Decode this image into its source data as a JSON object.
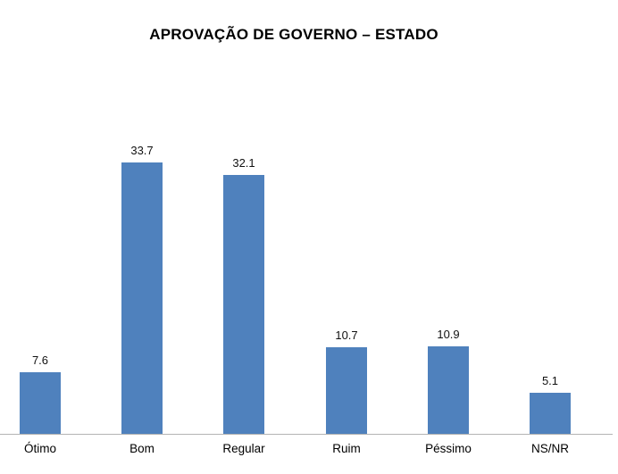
{
  "title": "APROVAÇÃO DE GOVERNO – ESTADO",
  "chart_data": {
    "type": "bar",
    "title": "APROVAÇÃO DE GOVERNO – ESTADO",
    "categories": [
      "Ótimo",
      "Bom",
      "Regular",
      "Ruim",
      "Péssimo",
      "NS/NR"
    ],
    "values": [
      7.6,
      33.7,
      32.1,
      10.7,
      10.9,
      5.1
    ],
    "value_labels": [
      "7.6",
      "33.7",
      "32.1",
      "10.7",
      "10.9",
      "5.1"
    ],
    "xlabel": "",
    "ylabel": "",
    "ylim": [
      0,
      40
    ],
    "grid": false,
    "legend": false,
    "bar_color": "#4F81BD",
    "axis_line_color": "#B3B3B3",
    "text_color": "#000000",
    "background_color": "#FFFFFF"
  }
}
